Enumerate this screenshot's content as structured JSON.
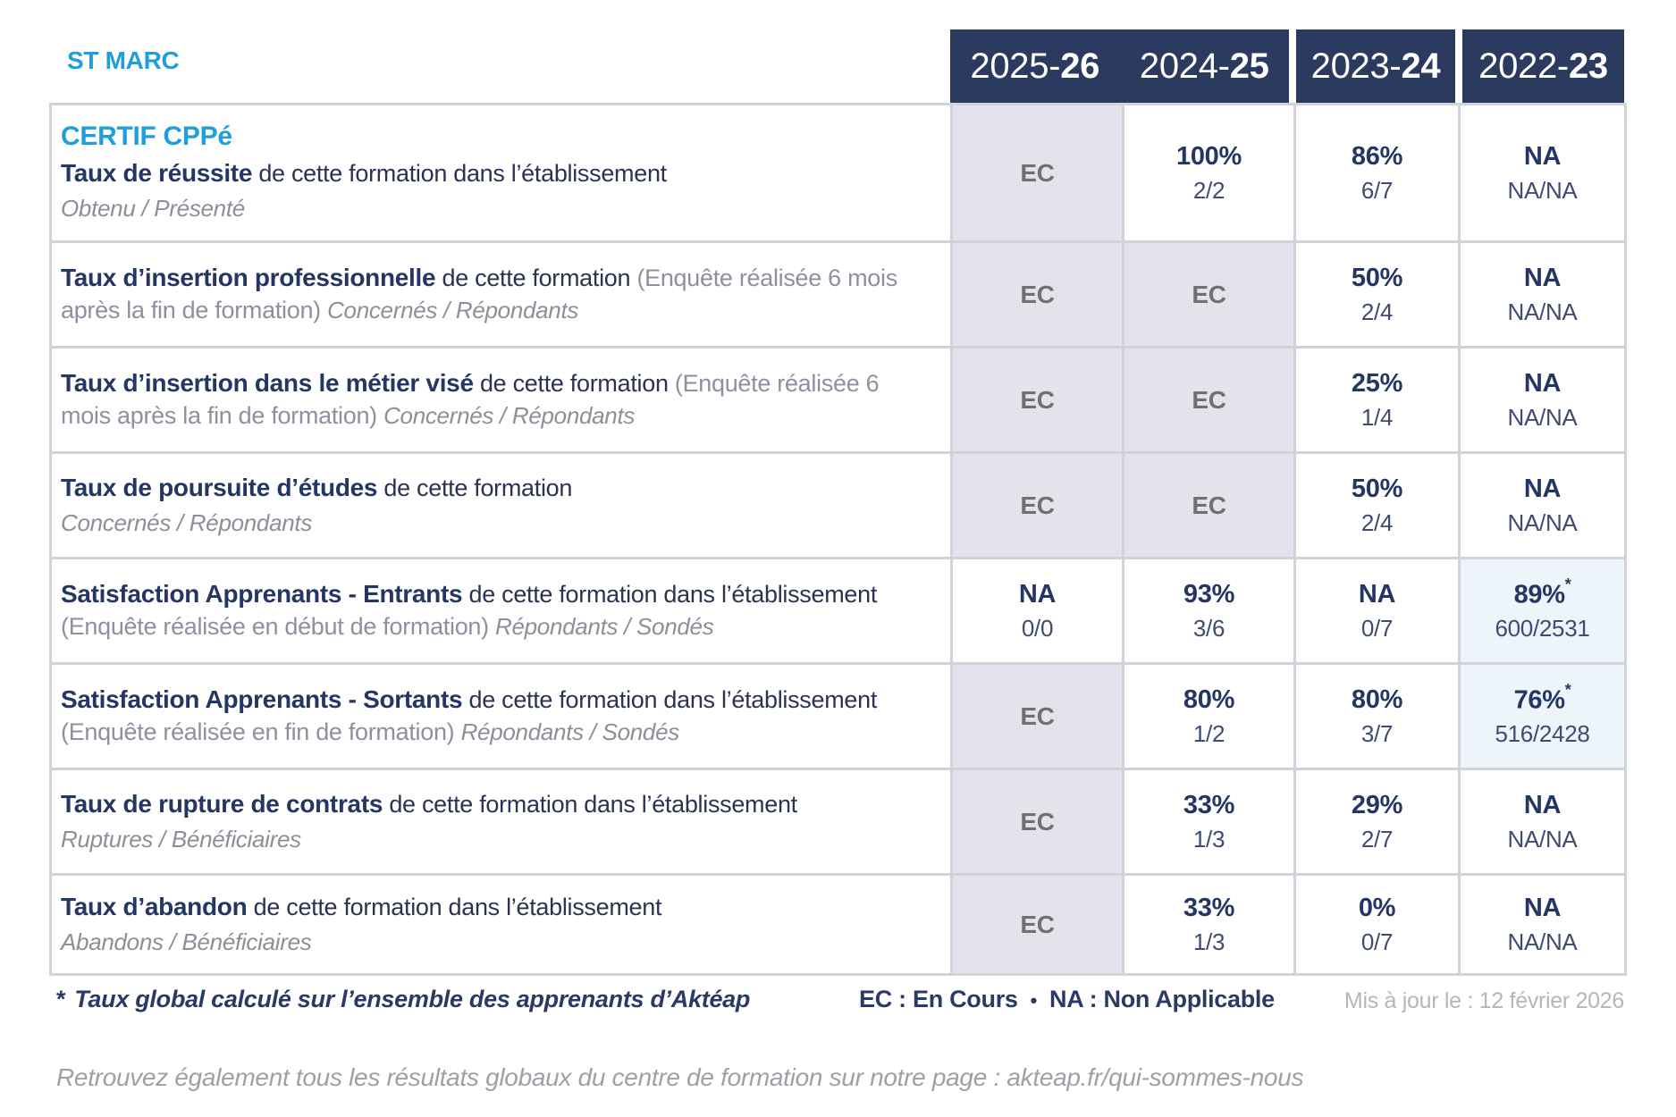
{
  "site": "ST MARC",
  "certification": "CERTIF CPPé",
  "star_mark": "*",
  "columns": [
    {
      "prefix": "2025-",
      "suffix": "26"
    },
    {
      "prefix": "2024-",
      "suffix": "25"
    },
    {
      "prefix": "2023-",
      "suffix": "24"
    },
    {
      "prefix": "2022-",
      "suffix": "23"
    }
  ],
  "rows": [
    {
      "heading": "CERTIF CPPé",
      "title": "Taux de réussite",
      "desc": "de cette formation dans l’établissement",
      "paren": "",
      "subtitle": "Obtenu / Présenté",
      "sub_block": true,
      "cells": [
        {
          "main": "EC",
          "bg": "gray"
        },
        {
          "main": "100%",
          "sub": "2/2"
        },
        {
          "main": "86%",
          "sub": "6/7"
        },
        {
          "main": "NA",
          "sub": "NA/NA"
        }
      ]
    },
    {
      "title": "Taux d’insertion professionnelle",
      "desc": "de cette formation",
      "paren": "(Enquête réalisée 6 mois après la fin de formation)",
      "subtitle": "Concernés / Répondants",
      "sub_block": false,
      "cells": [
        {
          "main": "EC",
          "bg": "gray"
        },
        {
          "main": "EC",
          "bg": "gray"
        },
        {
          "main": "50%",
          "sub": "2/4"
        },
        {
          "main": "NA",
          "sub": "NA/NA"
        }
      ]
    },
    {
      "title": "Taux d’insertion dans le métier visé",
      "desc": "de cette formation",
      "paren": "(Enquête réalisée 6 mois après la fin de formation)",
      "subtitle": "Concernés / Répondants",
      "sub_block": false,
      "cells": [
        {
          "main": "EC",
          "bg": "gray"
        },
        {
          "main": "EC",
          "bg": "gray"
        },
        {
          "main": "25%",
          "sub": "1/4"
        },
        {
          "main": "NA",
          "sub": "NA/NA"
        }
      ]
    },
    {
      "title": "Taux de poursuite d’études",
      "desc": "de cette formation",
      "paren": "",
      "subtitle": "Concernés / Répondants",
      "sub_block": true,
      "cells": [
        {
          "main": "EC",
          "bg": "gray"
        },
        {
          "main": "EC",
          "bg": "gray"
        },
        {
          "main": "50%",
          "sub": "2/4"
        },
        {
          "main": "NA",
          "sub": "NA/NA"
        }
      ]
    },
    {
      "title": "Satisfaction Apprenants - Entrants",
      "desc": "de cette formation dans l’établissement",
      "paren": "(Enquête réalisée en début de formation)",
      "subtitle": "Répondants / Sondés",
      "sub_block": false,
      "cells": [
        {
          "main": "NA",
          "sub": "0/0"
        },
        {
          "main": "93%",
          "sub": "3/6"
        },
        {
          "main": "NA",
          "sub": "0/7"
        },
        {
          "main": "89%",
          "sub": "600/2531",
          "star": true,
          "bg": "blue"
        }
      ]
    },
    {
      "title": "Satisfaction Apprenants - Sortants",
      "desc": "de cette formation dans l’établissement",
      "paren": "(Enquête réalisée en fin de formation)",
      "subtitle": "Répondants / Sondés",
      "sub_block": false,
      "cells": [
        {
          "main": "EC",
          "bg": "gray"
        },
        {
          "main": "80%",
          "sub": "1/2"
        },
        {
          "main": "80%",
          "sub": "3/7"
        },
        {
          "main": "76%",
          "sub": "516/2428",
          "star": true,
          "bg": "blue"
        }
      ]
    },
    {
      "title": "Taux de rupture de contrats",
      "desc": "de cette formation dans l’établissement",
      "paren": "",
      "subtitle": "Ruptures / Bénéficiaires",
      "sub_block": true,
      "cells": [
        {
          "main": "EC",
          "bg": "gray"
        },
        {
          "main": "33%",
          "sub": "1/3"
        },
        {
          "main": "29%",
          "sub": "2/7"
        },
        {
          "main": "NA",
          "sub": "NA/NA"
        }
      ]
    },
    {
      "title": "Taux d’abandon",
      "desc": "de cette formation dans l’établissement",
      "paren": "",
      "subtitle": "Abandons / Bénéficiaires",
      "sub_block": true,
      "cells": [
        {
          "main": "EC",
          "bg": "gray"
        },
        {
          "main": "33%",
          "sub": "1/3"
        },
        {
          "main": "0%",
          "sub": "0/7"
        },
        {
          "main": "NA",
          "sub": "NA/NA"
        }
      ]
    }
  ],
  "footer": {
    "star": "*",
    "note": "Taux global calculé sur l’ensemble des apprenants d’Aktéap",
    "legend_ec": "EC : En Cours",
    "legend_sep": "•",
    "legend_na": "NA : Non Applicable",
    "updated": "Mis à jour le : 12 février 2026"
  },
  "bottom_note": "Retrouvez également tous les résultats globaux du centre de formation sur notre page : akteap.fr/qui-sommes-nous",
  "colors": {
    "header_navy": "#2b3a5f",
    "value_navy": "#243663",
    "accent_cyan": "#1f9fda",
    "ec_cell_bg": "#e3e3eb",
    "star_cell_bg": "#edf4fa",
    "ec_text_gray": "#707175",
    "border_gray": "#d2d3da"
  }
}
